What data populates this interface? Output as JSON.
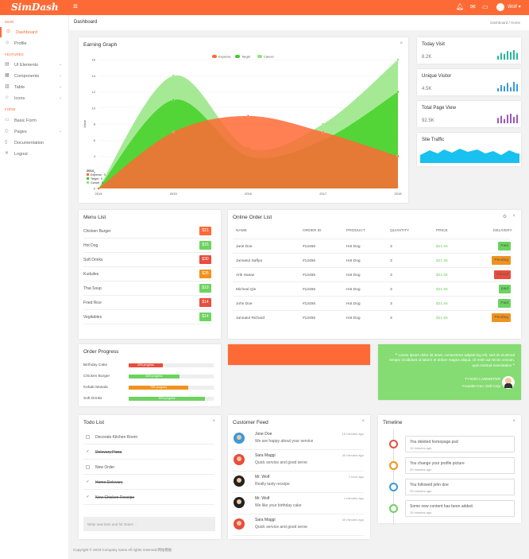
{
  "brand": {
    "logo": "SimDash",
    "accent": "#fe6a35"
  },
  "topbar": {
    "user": "Wolf",
    "icons": [
      "menu-icon",
      "bell-icon",
      "mail-icon",
      "chat-icon",
      "user-avatar"
    ]
  },
  "sidebar": {
    "sections": [
      {
        "id": "main",
        "label": "MAIN"
      },
      {
        "id": "features",
        "label": "FEATURES"
      },
      {
        "id": "form",
        "label": "FORM"
      }
    ],
    "items": [
      {
        "label": "Dashboard",
        "icon": "dashboard-icon",
        "active": true
      },
      {
        "label": "Profile",
        "icon": "user-icon"
      },
      {
        "label": "UI Elements",
        "icon": "layers-icon",
        "chevron": true
      },
      {
        "label": "Components",
        "icon": "grid-icon",
        "chevron": true
      },
      {
        "label": "Table",
        "icon": "table-icon",
        "chevron": true
      },
      {
        "label": "Icons",
        "icon": "star-icon",
        "chevron": true
      },
      {
        "label": "Basic Form",
        "icon": "form-icon"
      },
      {
        "label": "Pages",
        "icon": "pages-icon",
        "chevron": true
      },
      {
        "label": "Documentation",
        "icon": "doc-icon"
      },
      {
        "label": "Logout",
        "icon": "logout-icon"
      }
    ]
  },
  "breadcrumb": {
    "title": "Dashboard",
    "path": "Dashboard  /  Home"
  },
  "earning": {
    "title": "Earning Graph",
    "close": "×"
  },
  "chart_data": {
    "type": "area",
    "title": "Earning Graph",
    "xlabel": "",
    "ylabel": "Value",
    "x": [
      2014,
      2015,
      2016,
      2017,
      2018
    ],
    "ylim": [
      0,
      16
    ],
    "yticks": [
      0,
      2,
      4,
      6,
      8,
      10,
      12,
      14,
      16
    ],
    "series": [
      {
        "name": "Expense",
        "color": "#fe6a35",
        "values": [
          0,
          7,
          9,
          7,
          4
        ]
      },
      {
        "name": "Target",
        "color": "#3ecf1f",
        "values": [
          0,
          11,
          4,
          6,
          12
        ]
      },
      {
        "name": "Cancel",
        "color": "#8fe37b",
        "values": [
          0,
          14,
          5,
          8,
          16
        ]
      }
    ],
    "legend_position": "top-center",
    "tooltip": {
      "title": "2014",
      "rows": [
        "Expense : 0",
        "Target : 0",
        "Cancel : 0"
      ]
    }
  },
  "stats": [
    {
      "title": "Today Visit",
      "value": "8.2K",
      "color": "#26b99a",
      "bars": [
        4,
        7,
        6,
        9,
        8,
        10,
        7
      ]
    },
    {
      "title": "Unique Visitor",
      "value": "4.5K",
      "color": "#3a9bd9",
      "bars": [
        3,
        6,
        5,
        8,
        4,
        9,
        7
      ]
    },
    {
      "title": "Total Page View",
      "value": "92.5K",
      "color": "#9b59b6",
      "bars": [
        5,
        7,
        4,
        8,
        9,
        6,
        8
      ]
    },
    {
      "title": "Site Traffic",
      "value": "",
      "color": "#18c1ef"
    }
  ],
  "menu": {
    "title": "Menu List",
    "items": [
      {
        "name": "Chicken Burger",
        "price": "$21",
        "color": "#fe6a35"
      },
      {
        "name": "Hot Dog",
        "price": "$15",
        "color": "#6dd35f"
      },
      {
        "name": "Soft Drinks",
        "price": "$30",
        "color": "#e94d3d"
      },
      {
        "name": "Kuduiles",
        "price": "$25",
        "color": "#f0931e"
      },
      {
        "name": "Thai Soup",
        "price": "$19",
        "color": "#6dd35f"
      },
      {
        "name": "Fried Rice",
        "price": "$14",
        "color": "#e94d3d"
      },
      {
        "name": "Vegitables",
        "price": "$14",
        "color": "#6dd35f"
      }
    ]
  },
  "orders": {
    "title": "Online Order List",
    "columns": [
      "NAME",
      "ORDER ID",
      "PRODUCT",
      "QUANTITY",
      "PRICE",
      "DELIVERY"
    ],
    "rows": [
      {
        "name": "Jane Doe",
        "id": "#12456",
        "product": "Hot Dog",
        "qty": "3",
        "price": "$21.56",
        "status": "Paid",
        "color": "#6dd35f"
      },
      {
        "name": "Jannatul Saffya",
        "id": "#12456",
        "product": "Hot Dog",
        "qty": "3",
        "price": "$21.56",
        "status": "Pending",
        "color": "#f0931e"
      },
      {
        "name": "Arik Hasan",
        "id": "#12456",
        "product": "Hot Dog",
        "qty": "3",
        "price": "$21.56",
        "status": "Cancel",
        "color": "#e94d3d"
      },
      {
        "name": "Micheal Qin",
        "id": "#12456",
        "product": "Hot Dog",
        "qty": "3",
        "price": "$21.56",
        "status": "paid",
        "color": "#6dd35f"
      },
      {
        "name": "John Doe",
        "id": "#12456",
        "product": "Hot Dog",
        "qty": "3",
        "price": "$21.56",
        "status": "Paid",
        "color": "#6dd35f"
      },
      {
        "name": "Jannatul Richard",
        "id": "#12456",
        "product": "Hot Dog",
        "qty": "3",
        "price": "$21.56",
        "status": "Pending",
        "color": "#f0931e"
      }
    ]
  },
  "progress": {
    "title": "Order Progress",
    "items": [
      {
        "name": "Birthday Cake",
        "label": "40% progress",
        "pct": 40,
        "color": "#e94d3d"
      },
      {
        "name": "Chicken Burger",
        "label": "60% progress",
        "pct": 60,
        "color": "#6dd35f"
      },
      {
        "name": "Kebab Masala",
        "label": "70% progress",
        "pct": 70,
        "color": "#f0931e"
      },
      {
        "name": "Soft Drinks",
        "label": "90% progress",
        "pct": 90,
        "color": "#6dd35f"
      }
    ]
  },
  "quote": {
    "text": "Lorem ipsum dolor sit amet, consectetur adipisicing elit, sed do eiusmod tempor incididunt ut labore et dolore magna aliqua. Ut enim ad minim veniam, quis nostrud exercitation",
    "author": "TYSON LANNISTER",
    "role": "Founder-Ceo. Dell Corp"
  },
  "todo": {
    "title": "Todo List",
    "items": [
      {
        "text": "Decorate Kitchen Room",
        "done": false
      },
      {
        "text": "Delevary Pizza",
        "done": true
      },
      {
        "text": "New Order",
        "done": false
      },
      {
        "text": "Home Delevary",
        "done": true
      },
      {
        "text": "New Chicken Receipe",
        "done": true
      }
    ],
    "placeholder": "Write new item and hit 'Enter'..."
  },
  "feed": {
    "title": "Customer Feed",
    "items": [
      {
        "name": "Jone Doe",
        "msg": "We are happy about your service",
        "time": "15 minutes ago",
        "avatar": "#3a9bd9"
      },
      {
        "name": "Sara Maggi",
        "msg": "Quick service and good serve",
        "time": "40 minutes ago",
        "avatar": "#e94d3d"
      },
      {
        "name": "Mr. Wolf",
        "msg": "Really tasty receipe",
        "time": "1 hour ago",
        "avatar": "#222"
      },
      {
        "name": "Mr. Wolf",
        "msg": "We like your birthday cake",
        "time": "1 minutes ago",
        "avatar": "#222"
      },
      {
        "name": "Sara Maggi",
        "msg": "Quick service and good serve",
        "time": "40 minutes ago",
        "avatar": "#e94d3d"
      }
    ]
  },
  "timeline": {
    "title": "Timeline",
    "items": [
      {
        "text": "You deleted homepage.psd",
        "time": "10 minutes ago",
        "color": "#e94d3d"
      },
      {
        "text": "You change your profile picture",
        "time": "20 minutes ago",
        "color": "#f0931e"
      },
      {
        "text": "You followed john doe",
        "time": "30 minutes ago",
        "color": "#3a9bd9"
      },
      {
        "text": "Some new content has been added.",
        "time": "15 minutes ago",
        "color": "#6dd35f"
      }
    ]
  },
  "footer": "Copyright © 2019 Company name All rights reserved.网站模板"
}
